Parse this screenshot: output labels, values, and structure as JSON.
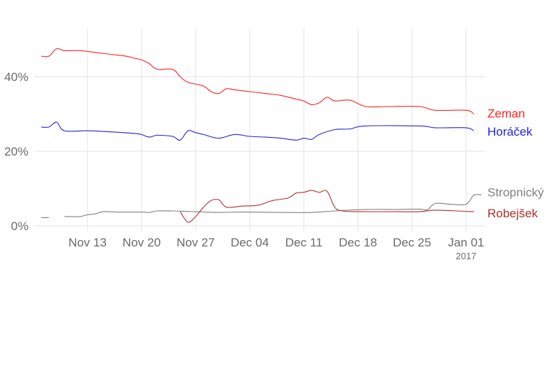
{
  "chart_data": {
    "type": "line",
    "title": "",
    "xlabel": "",
    "ylabel": "",
    "ylim": [
      0,
      52
    ],
    "y_ticks": [
      {
        "value": 0,
        "label": "0%"
      },
      {
        "value": 20,
        "label": "20%"
      },
      {
        "value": 40,
        "label": "40%"
      }
    ],
    "x_ticks": [
      {
        "date": "2016-11-13",
        "label": "Nov 13"
      },
      {
        "date": "2016-11-20",
        "label": "Nov 20"
      },
      {
        "date": "2016-11-27",
        "label": "Nov 27"
      },
      {
        "date": "2016-12-04",
        "label": "Dec 04"
      },
      {
        "date": "2016-12-11",
        "label": "Dec 11"
      },
      {
        "date": "2016-12-18",
        "label": "Dec 18"
      },
      {
        "date": "2016-12-25",
        "label": "Dec 25"
      },
      {
        "date": "2017-01-01",
        "label": "Jan 01",
        "sub": "2017"
      }
    ],
    "xlim": [
      "2016-11-07",
      "2017-01-03"
    ],
    "grid": true,
    "legend": "direct labels at right end of lines",
    "series": [
      {
        "name": "Zeman",
        "color": "#ff2020",
        "points": [
          [
            "2016-11-07",
            45.5
          ],
          [
            "2016-11-08",
            45.5
          ],
          [
            "2016-11-09",
            47.5
          ],
          [
            "2016-11-10",
            47
          ],
          [
            "2016-11-12",
            47
          ],
          [
            "2016-11-14",
            46.5
          ],
          [
            "2016-11-16",
            46
          ],
          [
            "2016-11-18",
            45.5
          ],
          [
            "2016-11-19",
            45
          ],
          [
            "2016-11-20",
            44.5
          ],
          [
            "2016-11-21",
            43.5
          ],
          [
            "2016-11-22",
            42
          ],
          [
            "2016-11-24",
            42
          ],
          [
            "2016-11-25",
            40
          ],
          [
            "2016-11-26",
            38.5
          ],
          [
            "2016-11-28",
            37.5
          ],
          [
            "2016-11-29",
            36
          ],
          [
            "2016-11-30",
            35.5
          ],
          [
            "2016-12-01",
            36.8
          ],
          [
            "2016-12-02",
            36.5
          ],
          [
            "2016-12-04",
            36
          ],
          [
            "2016-12-06",
            35.5
          ],
          [
            "2016-12-08",
            35
          ],
          [
            "2016-12-10",
            34
          ],
          [
            "2016-12-11",
            33.5
          ],
          [
            "2016-12-12",
            32.5
          ],
          [
            "2016-12-13",
            33
          ],
          [
            "2016-12-14",
            34.5
          ],
          [
            "2016-12-15",
            33.5
          ],
          [
            "2016-12-17",
            33.7
          ],
          [
            "2016-12-19",
            32
          ],
          [
            "2016-12-22",
            32
          ],
          [
            "2016-12-26",
            32
          ],
          [
            "2016-12-28",
            31
          ],
          [
            "2017-01-01",
            31
          ],
          [
            "2017-01-02",
            30
          ]
        ]
      },
      {
        "name": "Horáček",
        "color": "#2323e0",
        "points": [
          [
            "2016-11-07",
            26.5
          ],
          [
            "2016-11-08",
            26.5
          ],
          [
            "2016-11-09",
            27.8
          ],
          [
            "2016-11-10",
            25.5
          ],
          [
            "2016-11-13",
            25.5
          ],
          [
            "2016-11-16",
            25.2
          ],
          [
            "2016-11-19",
            24.8
          ],
          [
            "2016-11-20",
            24.5
          ],
          [
            "2016-11-21",
            23.8
          ],
          [
            "2016-11-22",
            24.3
          ],
          [
            "2016-11-24",
            24
          ],
          [
            "2016-11-25",
            23
          ],
          [
            "2016-11-26",
            25.5
          ],
          [
            "2016-11-27",
            25
          ],
          [
            "2016-11-28",
            24.5
          ],
          [
            "2016-11-30",
            23.5
          ],
          [
            "2016-12-02",
            24.5
          ],
          [
            "2016-12-04",
            24
          ],
          [
            "2016-12-06",
            23.8
          ],
          [
            "2016-12-08",
            23.5
          ],
          [
            "2016-12-10",
            23
          ],
          [
            "2016-12-11",
            23.5
          ],
          [
            "2016-12-12",
            23.2
          ],
          [
            "2016-12-13",
            24.5
          ],
          [
            "2016-12-15",
            25.8
          ],
          [
            "2016-12-17",
            26
          ],
          [
            "2016-12-19",
            26.8
          ],
          [
            "2016-12-26",
            26.8
          ],
          [
            "2016-12-28",
            26.3
          ],
          [
            "2017-01-01",
            26.3
          ],
          [
            "2017-01-02",
            25.5
          ]
        ]
      },
      {
        "name": "Stropnický",
        "color": "#808080",
        "segments": [
          [
            [
              "2016-11-07",
              2.2
            ],
            [
              "2016-11-08",
              2.2
            ]
          ],
          [
            [
              "2016-11-10",
              2.5
            ],
            [
              "2016-11-12",
              2.5
            ],
            [
              "2016-11-13",
              3
            ],
            [
              "2016-11-14",
              3.2
            ],
            [
              "2016-11-15",
              3.8
            ],
            [
              "2016-11-17",
              3.7
            ],
            [
              "2016-11-20",
              3.7
            ],
            [
              "2016-11-21",
              3.6
            ],
            [
              "2016-11-22",
              4
            ],
            [
              "2016-11-24",
              4
            ],
            [
              "2016-11-27",
              3.8
            ],
            [
              "2016-11-30",
              3.6
            ],
            [
              "2016-12-03",
              3.7
            ],
            [
              "2016-12-08",
              3.6
            ],
            [
              "2016-12-12",
              3.6
            ],
            [
              "2016-12-15",
              4
            ],
            [
              "2016-12-19",
              4.4
            ],
            [
              "2016-12-23",
              4.4
            ],
            [
              "2016-12-26",
              4.5
            ],
            [
              "2016-12-27",
              4.3
            ],
            [
              "2016-12-28",
              6
            ],
            [
              "2016-12-30",
              5.8
            ],
            [
              "2017-01-01",
              5.8
            ],
            [
              "2017-01-02",
              8.2
            ],
            [
              "2017-01-03",
              8.3
            ]
          ]
        ]
      },
      {
        "name": "Robejšek",
        "color": "#b03030",
        "points": [
          [
            "2016-11-25",
            3.8
          ],
          [
            "2016-11-26",
            1
          ],
          [
            "2016-11-27",
            2.5
          ],
          [
            "2016-11-28",
            5
          ],
          [
            "2016-11-29",
            6.8
          ],
          [
            "2016-11-30",
            7
          ],
          [
            "2016-12-01",
            5
          ],
          [
            "2016-12-03",
            5.3
          ],
          [
            "2016-12-05",
            5.5
          ],
          [
            "2016-12-07",
            6.8
          ],
          [
            "2016-12-09",
            7.5
          ],
          [
            "2016-12-10",
            8.8
          ],
          [
            "2016-12-11",
            9
          ],
          [
            "2016-12-12",
            9.5
          ],
          [
            "2016-12-13",
            9
          ],
          [
            "2016-12-14",
            9.3
          ],
          [
            "2016-12-15",
            5
          ],
          [
            "2016-12-16",
            4
          ],
          [
            "2016-12-18",
            3.8
          ],
          [
            "2016-12-23",
            3.8
          ],
          [
            "2016-12-26",
            3.8
          ],
          [
            "2016-12-28",
            4.2
          ],
          [
            "2017-01-02",
            3.8
          ]
        ]
      }
    ]
  }
}
